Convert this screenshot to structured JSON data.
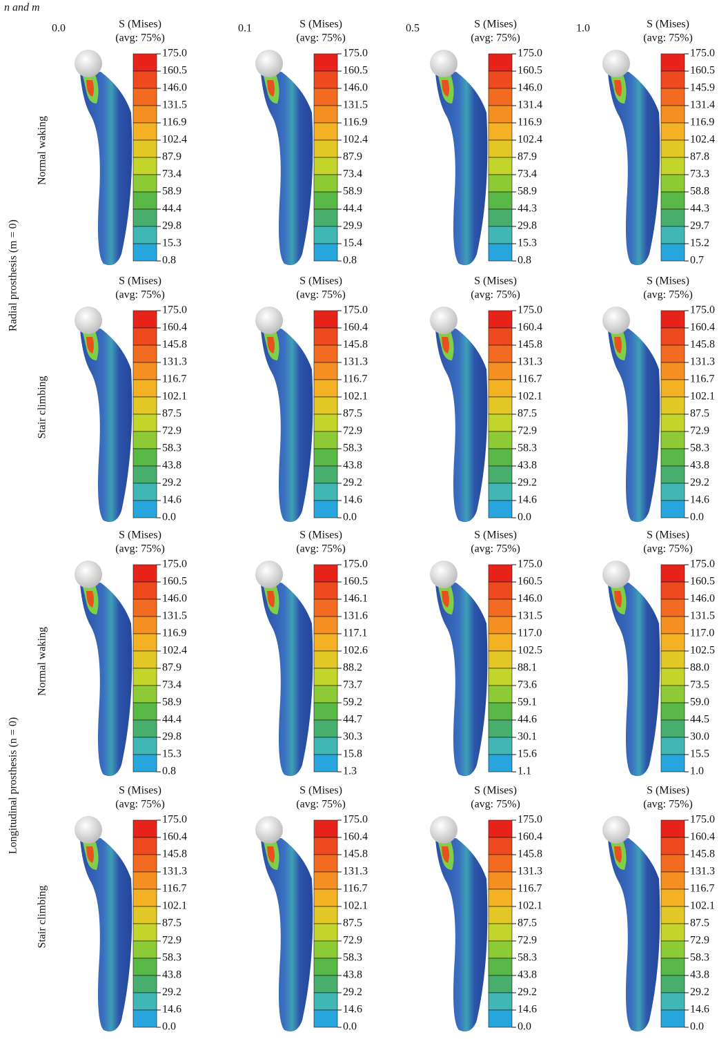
{
  "header": "n and m",
  "columns": [
    "0.0",
    "0.1",
    "0.5",
    "1.0"
  ],
  "groups": [
    {
      "label": "Radial prosthesis (m = 0)",
      "rows": [
        {
          "label": "Normal waking",
          "panels": [
            {
              "title": "S (Mises)",
              "subtitle": "(avg: 75%)",
              "ticks": [
                "175.0",
                "160.5",
                "146.0",
                "131.5",
                "116.9",
                "102.4",
                "87.9",
                "73.4",
                "58.9",
                "44.4",
                "29.8",
                "15.3",
                "0.8"
              ]
            },
            {
              "title": "S (Mises)",
              "subtitle": "(avg: 75%)",
              "ticks": [
                "175.0",
                "160.5",
                "146.0",
                "131.5",
                "116.9",
                "102.4",
                "87.9",
                "73.4",
                "58.9",
                "44.4",
                "29.9",
                "15.4",
                "0.8"
              ]
            },
            {
              "title": "S (Mises)",
              "subtitle": "(avg: 75%)",
              "ticks": [
                "175.0",
                "160.5",
                "146.0",
                "131.4",
                "116.9",
                "102.4",
                "87.9",
                "73.4",
                "58.9",
                "44.3",
                "29.8",
                "15.3",
                "0.8"
              ]
            },
            {
              "title": "S (Mises)",
              "subtitle": "(avg: 75%)",
              "ticks": [
                "175.0",
                "160.5",
                "145.9",
                "131.4",
                "116.9",
                "102.4",
                "87.8",
                "73.3",
                "58.8",
                "44.3",
                "29.7",
                "15.2",
                "0.7"
              ]
            }
          ]
        },
        {
          "label": "Stair climbing",
          "panels": [
            {
              "title": "S (Mises)",
              "subtitle": "(avg: 75%)",
              "ticks": [
                "175.0",
                "160.4",
                "145.8",
                "131.3",
                "116.7",
                "102.1",
                "87.5",
                "72.9",
                "58.3",
                "43.8",
                "29.2",
                "14.6",
                "0.0"
              ]
            },
            {
              "title": "S (Mises)",
              "subtitle": "(avg: 75%)",
              "ticks": [
                "175.0",
                "160.4",
                "145.8",
                "131.3",
                "116.7",
                "102.1",
                "87.5",
                "72.9",
                "58.3",
                "43.8",
                "29.2",
                "14.6",
                "0.0"
              ]
            },
            {
              "title": "S (Mises)",
              "subtitle": "(avg: 75%)",
              "ticks": [
                "175.0",
                "160.4",
                "145.8",
                "131.3",
                "116.7",
                "102.1",
                "87.5",
                "72.9",
                "58.3",
                "43.8",
                "29.2",
                "14.6",
                "0.0"
              ]
            },
            {
              "title": "S (Mises)",
              "subtitle": "(avg: 75%)",
              "ticks": [
                "175.0",
                "160.4",
                "145.8",
                "131.3",
                "116.7",
                "102.1",
                "87.5",
                "72.9",
                "58.3",
                "43.8",
                "29.2",
                "14.6",
                "0.0"
              ]
            }
          ]
        }
      ]
    },
    {
      "label": "Longitudinal prosthesis (n = 0)",
      "rows": [
        {
          "label": "Normal waking",
          "panels": [
            {
              "title": "S (Mises)",
              "subtitle": "(avg: 75%)",
              "ticks": [
                "175.0",
                "160.5",
                "146.0",
                "131.5",
                "116.9",
                "102.4",
                "87.9",
                "73.4",
                "58.9",
                "44.4",
                "29.8",
                "15.3",
                "0.8"
              ]
            },
            {
              "title": "S (Mises)",
              "subtitle": "(avg: 75%)",
              "ticks": [
                "175.0",
                "160.5",
                "146.1",
                "131.6",
                "117.1",
                "102.6",
                "88.2",
                "73.7",
                "59.2",
                "44.7",
                "30.3",
                "15.8",
                "1.3"
              ]
            },
            {
              "title": "S (Mises)",
              "subtitle": "(avg: 75%)",
              "ticks": [
                "175.0",
                "160.5",
                "146.0",
                "131.5",
                "117.0",
                "102.5",
                "88.1",
                "73.6",
                "59.1",
                "44.6",
                "30.1",
                "15.6",
                "1.1"
              ]
            },
            {
              "title": "S (Mises)",
              "subtitle": "(avg: 75%)",
              "ticks": [
                "175.0",
                "160.5",
                "146.0",
                "131.5",
                "117.0",
                "102.5",
                "88.0",
                "73.5",
                "59.0",
                "44.5",
                "30.0",
                "15.5",
                "1.0"
              ]
            }
          ]
        },
        {
          "label": "Stair climbing",
          "panels": [
            {
              "title": "S (Mises)",
              "subtitle": "(avg: 75%)",
              "ticks": [
                "175.0",
                "160.4",
                "145.8",
                "131.3",
                "116.7",
                "102.1",
                "87.5",
                "72.9",
                "58.3",
                "43.8",
                "29.2",
                "14.6",
                "0.0"
              ]
            },
            {
              "title": "S (Mises)",
              "subtitle": "(avg: 75%)",
              "ticks": [
                "175.0",
                "160.4",
                "145.8",
                "131.3",
                "116.7",
                "102.1",
                "87.5",
                "72.9",
                "58.3",
                "43.8",
                "29.2",
                "14.6",
                "0.0"
              ]
            },
            {
              "title": "S (Mises)",
              "subtitle": "(avg: 75%)",
              "ticks": [
                "175.0",
                "160.4",
                "145.8",
                "131.3",
                "116.7",
                "102.1",
                "87.5",
                "72.9",
                "58.3",
                "43.8",
                "29.2",
                "14.6",
                "0.0"
              ]
            },
            {
              "title": "S (Mises)",
              "subtitle": "(avg: 75%)",
              "ticks": [
                "175.0",
                "160.4",
                "145.8",
                "131.3",
                "116.7",
                "102.1",
                "87.5",
                "72.9",
                "58.3",
                "43.8",
                "29.2",
                "14.6",
                "0.0"
              ]
            }
          ]
        }
      ]
    }
  ]
}
